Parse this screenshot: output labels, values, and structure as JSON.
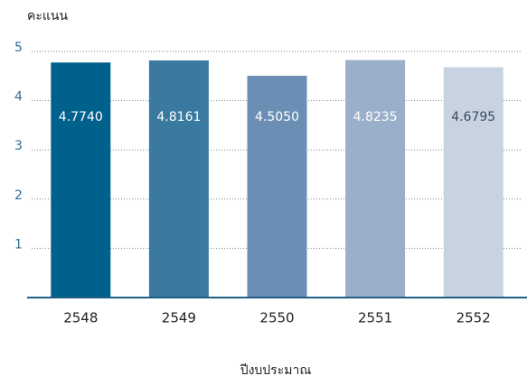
{
  "chart_data": {
    "type": "bar",
    "ylabel": "คะแนน",
    "xlabel": "ปีงบประมาณ",
    "categories": [
      "2548",
      "2549",
      "2550",
      "2551",
      "2552"
    ],
    "values": [
      4.774,
      4.8161,
      4.505,
      4.8235,
      4.6795
    ],
    "value_labels": [
      "4.7740",
      "4.8161",
      "4.5050",
      "4.8235",
      "4.6795"
    ],
    "colors": [
      "#00618d",
      "#3a7aa0",
      "#6b8fb4",
      "#9aafc9",
      "#c8d3e2"
    ],
    "label_colors": [
      "#ffffff",
      "#ffffff",
      "#ffffff",
      "#ffffff",
      "#3a4a5a"
    ],
    "ylim": [
      0,
      5
    ],
    "yticks": [
      1,
      2,
      3,
      4,
      5
    ],
    "grid": true
  }
}
